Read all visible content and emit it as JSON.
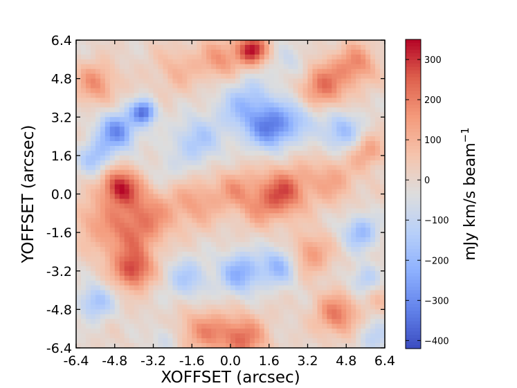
{
  "chart_data": {
    "type": "heatmap",
    "title": "",
    "xlabel": "XOFFSET (arcsec)",
    "ylabel": "YOFFSET (arcsec)",
    "xlim": [
      -6.4,
      6.4
    ],
    "ylim": [
      6.4,
      -6.4
    ],
    "x_ticks": [
      "-6.4",
      "-4.8",
      "-3.2",
      "-1.6",
      "0.0",
      "1.6",
      "3.2",
      "4.8",
      "6.4"
    ],
    "y_ticks": [
      "-6.4",
      "-4.8",
      "-3.2",
      "-1.6",
      "0.0",
      "1.6",
      "3.2",
      "4.8",
      "6.4"
    ],
    "colormap": "coolwarm",
    "colorbar": {
      "label": "mJy km/s beam",
      "label_exponent": "−1",
      "range": [
        -420,
        350
      ],
      "ticks": [
        {
          "value": 300,
          "label": "300"
        },
        {
          "value": 200,
          "label": "200"
        },
        {
          "value": 100,
          "label": "100"
        },
        {
          "value": 0,
          "label": "0"
        },
        {
          "value": -100,
          "label": "−100"
        },
        {
          "value": -200,
          "label": "−200"
        },
        {
          "value": -300,
          "label": "−300"
        },
        {
          "value": -400,
          "label": "−400"
        }
      ]
    },
    "features": [
      {
        "x": -4.0,
        "y": -3.2,
        "value": 250,
        "sigma": 0.55
      },
      {
        "x": -4.4,
        "y": -1.8,
        "value": 170,
        "sigma": 0.9
      },
      {
        "x": -4.6,
        "y": 0.3,
        "value": 310,
        "sigma": 0.55
      },
      {
        "x": -3.4,
        "y": -0.8,
        "value": 150,
        "sigma": 0.8
      },
      {
        "x": -5.8,
        "y": -1.0,
        "value": 90,
        "sigma": 0.6
      },
      {
        "x": -1.4,
        "y": -0.4,
        "value": 130,
        "sigma": 0.7
      },
      {
        "x": 0.2,
        "y": 0.2,
        "value": 140,
        "sigma": 0.6
      },
      {
        "x": 2.2,
        "y": 0.1,
        "value": 260,
        "sigma": 0.7
      },
      {
        "x": 1.2,
        "y": -0.6,
        "value": 110,
        "sigma": 0.6
      },
      {
        "x": 4.2,
        "y": 0.6,
        "value": 130,
        "sigma": 0.7
      },
      {
        "x": 5.7,
        "y": 1.8,
        "value": 150,
        "sigma": 0.5
      },
      {
        "x": 0.5,
        "y": -6.0,
        "value": 230,
        "sigma": 0.65
      },
      {
        "x": -0.9,
        "y": -5.7,
        "value": 150,
        "sigma": 0.6
      },
      {
        "x": 4.4,
        "y": -5.0,
        "value": 210,
        "sigma": 0.6
      },
      {
        "x": 3.3,
        "y": -2.5,
        "value": 160,
        "sigma": 0.6
      },
      {
        "x": -2.0,
        "y": -5.8,
        "value": 90,
        "sigma": 0.6
      },
      {
        "x": 3.8,
        "y": 4.5,
        "value": 220,
        "sigma": 0.7
      },
      {
        "x": 5.2,
        "y": 5.4,
        "value": 180,
        "sigma": 0.6
      },
      {
        "x": 0.9,
        "y": 6.0,
        "value": 330,
        "sigma": 0.45
      },
      {
        "x": -0.4,
        "y": 5.6,
        "value": 160,
        "sigma": 0.6
      },
      {
        "x": -5.6,
        "y": 4.6,
        "value": 170,
        "sigma": 0.6
      },
      {
        "x": -2.2,
        "y": 5.2,
        "value": 90,
        "sigma": 0.7
      },
      {
        "x": 6.1,
        "y": -4.2,
        "value": 70,
        "sigma": 0.5
      },
      {
        "x": -4.7,
        "y": 2.6,
        "value": -300,
        "sigma": 0.55
      },
      {
        "x": -3.6,
        "y": 3.4,
        "value": -350,
        "sigma": 0.35
      },
      {
        "x": -5.6,
        "y": 1.5,
        "value": -170,
        "sigma": 0.5
      },
      {
        "x": 1.7,
        "y": 2.7,
        "value": -280,
        "sigma": 0.6
      },
      {
        "x": 0.7,
        "y": 3.6,
        "value": -200,
        "sigma": 0.8
      },
      {
        "x": 2.8,
        "y": 3.2,
        "value": -140,
        "sigma": 0.6
      },
      {
        "x": 0.4,
        "y": -3.3,
        "value": -230,
        "sigma": 0.6
      },
      {
        "x": 2.0,
        "y": -3.0,
        "value": -200,
        "sigma": 0.55
      },
      {
        "x": -1.8,
        "y": -3.5,
        "value": -150,
        "sigma": 0.6
      },
      {
        "x": -1.4,
        "y": 2.2,
        "value": -160,
        "sigma": 0.7
      },
      {
        "x": 4.6,
        "y": 2.6,
        "value": -190,
        "sigma": 0.6
      },
      {
        "x": 5.4,
        "y": -1.6,
        "value": -200,
        "sigma": 0.5
      },
      {
        "x": 5.6,
        "y": -3.6,
        "value": -150,
        "sigma": 0.45
      },
      {
        "x": -5.6,
        "y": -4.5,
        "value": -180,
        "sigma": 0.5
      },
      {
        "x": -2.6,
        "y": -6.0,
        "value": -110,
        "sigma": 0.5
      },
      {
        "x": 6.0,
        "y": -6.0,
        "value": -110,
        "sigma": 0.5
      },
      {
        "x": 2.6,
        "y": 5.4,
        "value": -80,
        "sigma": 0.6
      },
      {
        "x": -2.8,
        "y": 0.9,
        "value": -60,
        "sigma": 0.5
      }
    ]
  }
}
